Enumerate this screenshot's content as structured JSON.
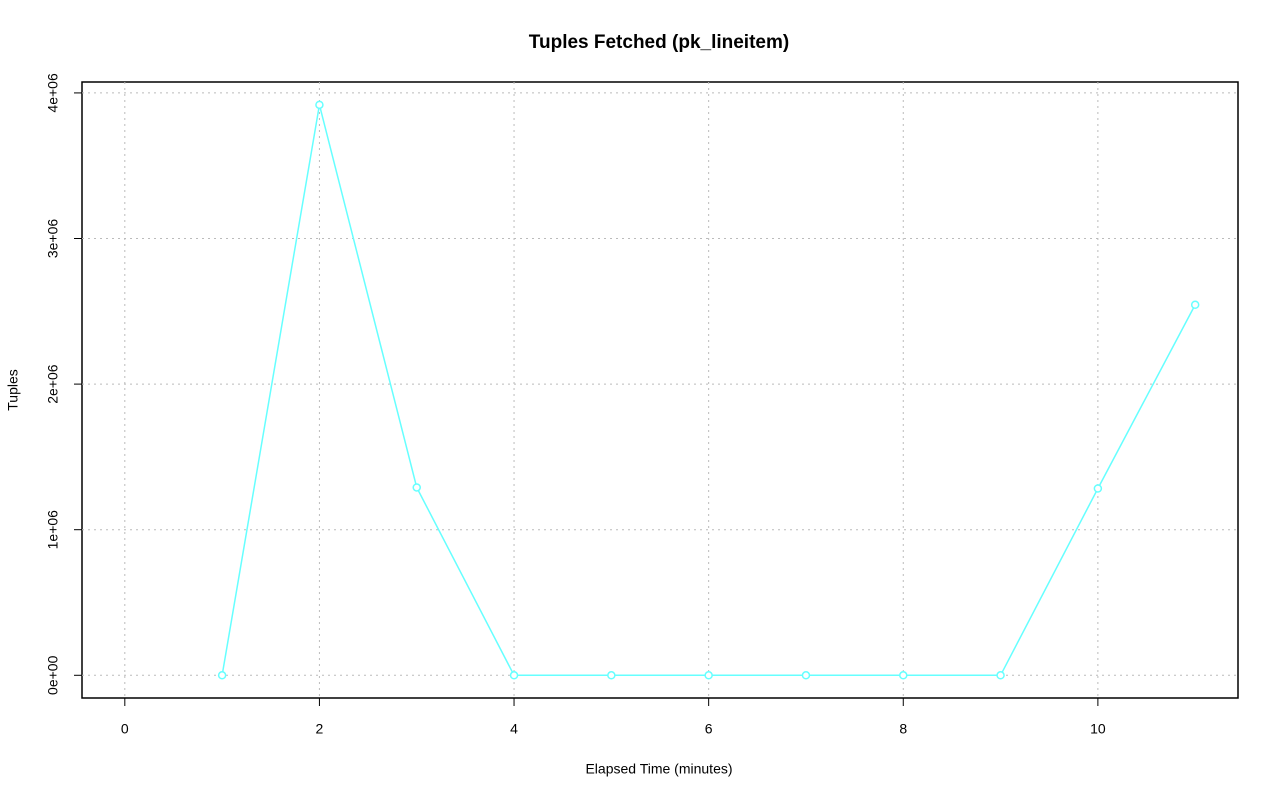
{
  "chart_data": {
    "type": "line",
    "title": "Tuples Fetched (pk_lineitem)",
    "x_label": "Elapsed Time (minutes)",
    "y_label": "Tuples",
    "x": [
      1,
      2,
      3,
      4,
      5,
      6,
      7,
      8,
      9,
      10,
      11
    ],
    "series": [
      {
        "name": "pk_lineitem",
        "color": "#66ffff",
        "values": [
          0,
          3918000,
          1290000,
          0,
          0,
          0,
          0,
          0,
          0,
          1283000,
          2545000
        ]
      }
    ],
    "xlim": [
      -0.44,
      11.44
    ],
    "xticks": [
      0,
      2,
      4,
      6,
      8,
      10
    ],
    "ylim": [
      -156000,
      4075000
    ],
    "yticks": [
      {
        "value": 0,
        "label": "0e+00"
      },
      {
        "value": 1000000,
        "label": "1e+06"
      },
      {
        "value": 2000000,
        "label": "2e+06"
      },
      {
        "value": 3000000,
        "label": "3e+06"
      },
      {
        "value": 4000000,
        "label": "4e+06"
      }
    ],
    "grid": true
  }
}
